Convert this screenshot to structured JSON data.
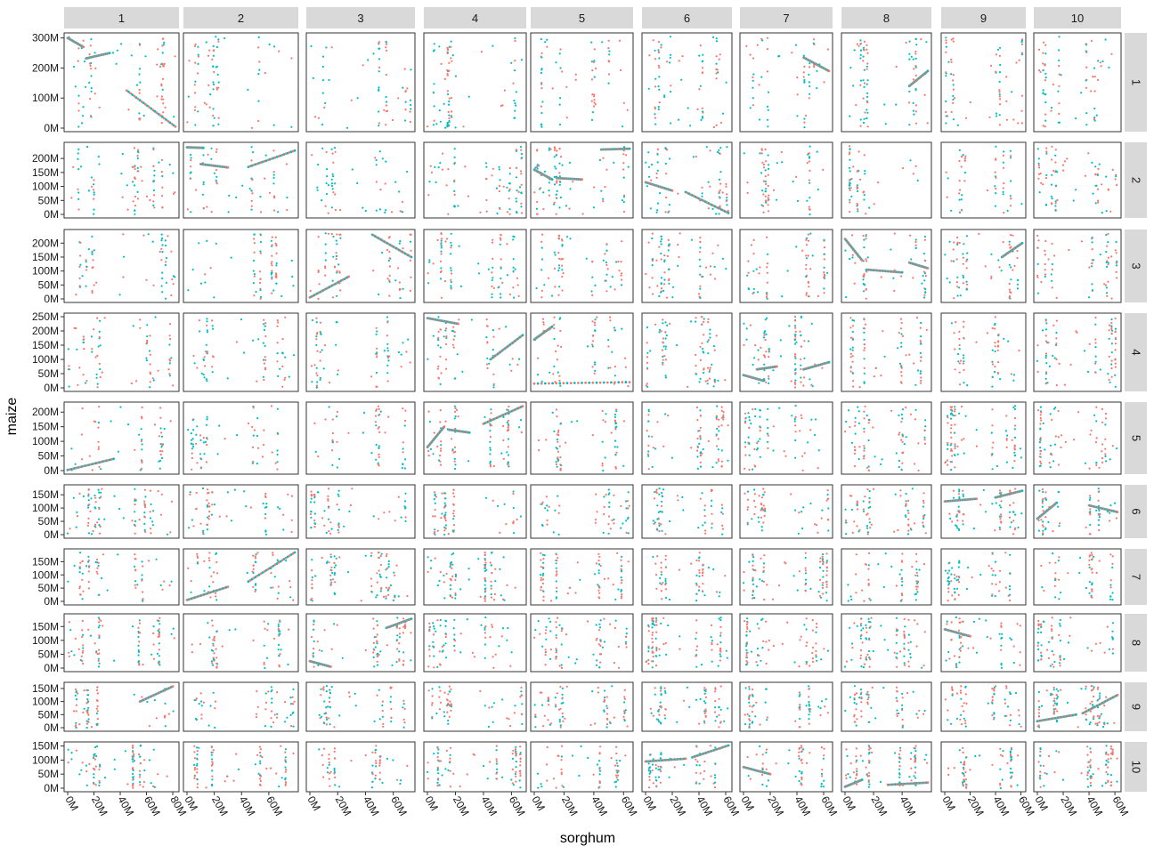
{
  "chart_data": {
    "type": "scatter",
    "title": "",
    "xlabel": "sorghum",
    "ylabel": "maize",
    "facet_cols": [
      "1",
      "2",
      "3",
      "4",
      "5",
      "6",
      "7",
      "8",
      "9",
      "10"
    ],
    "facet_rows": [
      "1",
      "2",
      "3",
      "4",
      "5",
      "6",
      "7",
      "8",
      "9",
      "10"
    ],
    "series_colors": [
      "#F8766D",
      "#00BFC4"
    ],
    "col_xmax_M": [
      82,
      79,
      73,
      68,
      64,
      62,
      64,
      58,
      61,
      62
    ],
    "row_ymax_M": [
      305,
      245,
      236,
      250,
      222,
      174,
      185,
      183,
      160,
      152
    ],
    "x_ticks": [
      {
        "value": 0,
        "label": "0M"
      },
      {
        "value": 20,
        "label": "20M"
      },
      {
        "value": 40,
        "label": "40M"
      },
      {
        "value": 60,
        "label": "60M"
      },
      {
        "value": 80,
        "label": "80M"
      }
    ],
    "y_ticks_by_row": [
      [
        {
          "value": 0,
          "label": "0M"
        },
        {
          "value": 100,
          "label": "100M"
        },
        {
          "value": 200,
          "label": "200M"
        },
        {
          "value": 300,
          "label": "300M"
        }
      ],
      [
        {
          "value": 0,
          "label": "0M"
        },
        {
          "value": 50,
          "label": "50M"
        },
        {
          "value": 100,
          "label": "100M"
        },
        {
          "value": 150,
          "label": "150M"
        },
        {
          "value": 200,
          "label": "200M"
        },
        {
          "value": 250,
          "label": "250M"
        }
      ],
      [
        {
          "value": 0,
          "label": "0M"
        },
        {
          "value": 50,
          "label": "50M"
        },
        {
          "value": 100,
          "label": "100M"
        },
        {
          "value": 150,
          "label": "150M"
        },
        {
          "value": 200,
          "label": "200M"
        }
      ],
      [
        {
          "value": 0,
          "label": "0M"
        },
        {
          "value": 50,
          "label": "50M"
        },
        {
          "value": 100,
          "label": "100M"
        },
        {
          "value": 150,
          "label": "150M"
        },
        {
          "value": 200,
          "label": "200M"
        },
        {
          "value": 250,
          "label": "250M"
        }
      ],
      [
        {
          "value": 0,
          "label": "0M"
        },
        {
          "value": 50,
          "label": "50M"
        },
        {
          "value": 100,
          "label": "100M"
        },
        {
          "value": 150,
          "label": "150M"
        },
        {
          "value": 200,
          "label": "200M"
        }
      ],
      [
        {
          "value": 0,
          "label": "0M"
        },
        {
          "value": 50,
          "label": "50M"
        },
        {
          "value": 100,
          "label": "100M"
        },
        {
          "value": 150,
          "label": "150M"
        }
      ],
      [
        {
          "value": 0,
          "label": "0M"
        },
        {
          "value": 50,
          "label": "50M"
        },
        {
          "value": 100,
          "label": "100M"
        },
        {
          "value": 150,
          "label": "150M"
        }
      ],
      [
        {
          "value": 0,
          "label": "0M"
        },
        {
          "value": 50,
          "label": "50M"
        },
        {
          "value": 100,
          "label": "100M"
        },
        {
          "value": 150,
          "label": "150M"
        }
      ],
      [
        {
          "value": 0,
          "label": "0M"
        },
        {
          "value": 50,
          "label": "50M"
        },
        {
          "value": 100,
          "label": "100M"
        },
        {
          "value": 150,
          "label": "150M"
        }
      ],
      [
        {
          "value": 0,
          "label": "0M"
        },
        {
          "value": 50,
          "label": "50M"
        },
        {
          "value": 100,
          "label": "100M"
        },
        {
          "value": 150,
          "label": "150M"
        }
      ]
    ],
    "syntenic_segments": [
      {
        "col": 1,
        "row": 1,
        "x0": 0,
        "y0": 300,
        "x1": 12,
        "y1": 270
      },
      {
        "col": 1,
        "row": 1,
        "x0": 14,
        "y0": 232,
        "x1": 32,
        "y1": 250
      },
      {
        "col": 1,
        "row": 1,
        "x0": 45,
        "y0": 125,
        "x1": 82,
        "y1": 5
      },
      {
        "col": 1,
        "row": 5,
        "x0": 0,
        "y0": 2,
        "x1": 35,
        "y1": 40
      },
      {
        "col": 1,
        "row": 9,
        "x0": 55,
        "y0": 100,
        "x1": 80,
        "y1": 158
      },
      {
        "col": 2,
        "row": 2,
        "x0": 0,
        "y0": 240,
        "x1": 12,
        "y1": 238
      },
      {
        "col": 2,
        "row": 2,
        "x0": 10,
        "y0": 180,
        "x1": 30,
        "y1": 168
      },
      {
        "col": 2,
        "row": 2,
        "x0": 45,
        "y0": 170,
        "x1": 79,
        "y1": 228
      },
      {
        "col": 2,
        "row": 7,
        "x0": 0,
        "y0": 5,
        "x1": 30,
        "y1": 55
      },
      {
        "col": 2,
        "row": 7,
        "x0": 45,
        "y0": 75,
        "x1": 79,
        "y1": 185
      },
      {
        "col": 3,
        "row": 3,
        "x0": 0,
        "y0": 5,
        "x1": 28,
        "y1": 80
      },
      {
        "col": 3,
        "row": 3,
        "x0": 45,
        "y0": 230,
        "x1": 73,
        "y1": 150
      },
      {
        "col": 3,
        "row": 8,
        "x0": 0,
        "y0": 25,
        "x1": 15,
        "y1": 5
      },
      {
        "col": 3,
        "row": 8,
        "x0": 55,
        "y0": 145,
        "x1": 73,
        "y1": 178
      },
      {
        "col": 4,
        "row": 4,
        "x0": 0,
        "y0": 245,
        "x1": 22,
        "y1": 225
      },
      {
        "col": 4,
        "row": 4,
        "x0": 45,
        "y0": 100,
        "x1": 68,
        "y1": 185
      },
      {
        "col": 4,
        "row": 5,
        "x0": 0,
        "y0": 80,
        "x1": 12,
        "y1": 150
      },
      {
        "col": 4,
        "row": 5,
        "x0": 15,
        "y0": 140,
        "x1": 30,
        "y1": 130
      },
      {
        "col": 4,
        "row": 5,
        "x0": 40,
        "y0": 160,
        "x1": 68,
        "y1": 220
      },
      {
        "col": 5,
        "row": 2,
        "x0": 0,
        "y0": 160,
        "x1": 12,
        "y1": 125
      },
      {
        "col": 5,
        "row": 2,
        "x0": 15,
        "y0": 130,
        "x1": 32,
        "y1": 125
      },
      {
        "col": 5,
        "row": 2,
        "x0": 45,
        "y0": 232,
        "x1": 64,
        "y1": 235
      },
      {
        "col": 5,
        "row": 4,
        "x0": 0,
        "y0": 15,
        "x1": 64,
        "y1": 20
      },
      {
        "col": 5,
        "row": 4,
        "x0": 0,
        "y0": 170,
        "x1": 12,
        "y1": 215
      },
      {
        "col": 6,
        "row": 2,
        "x0": 0,
        "y0": 115,
        "x1": 20,
        "y1": 85
      },
      {
        "col": 6,
        "row": 2,
        "x0": 30,
        "y0": 80,
        "x1": 62,
        "y1": 5
      },
      {
        "col": 6,
        "row": 10,
        "x0": 0,
        "y0": 95,
        "x1": 30,
        "y1": 105
      },
      {
        "col": 6,
        "row": 10,
        "x0": 35,
        "y0": 110,
        "x1": 62,
        "y1": 152
      },
      {
        "col": 7,
        "row": 1,
        "x0": 45,
        "y0": 235,
        "x1": 64,
        "y1": 190
      },
      {
        "col": 7,
        "row": 4,
        "x0": 0,
        "y0": 45,
        "x1": 15,
        "y1": 25
      },
      {
        "col": 7,
        "row": 4,
        "x0": 10,
        "y0": 65,
        "x1": 25,
        "y1": 75
      },
      {
        "col": 7,
        "row": 4,
        "x0": 45,
        "y0": 65,
        "x1": 64,
        "y1": 90
      },
      {
        "col": 7,
        "row": 10,
        "x0": 0,
        "y0": 75,
        "x1": 20,
        "y1": 50
      },
      {
        "col": 8,
        "row": 1,
        "x0": 45,
        "y0": 140,
        "x1": 58,
        "y1": 190
      },
      {
        "col": 8,
        "row": 3,
        "x0": 0,
        "y0": 215,
        "x1": 12,
        "y1": 138
      },
      {
        "col": 8,
        "row": 3,
        "x0": 15,
        "y0": 105,
        "x1": 40,
        "y1": 95
      },
      {
        "col": 8,
        "row": 3,
        "x0": 45,
        "y0": 130,
        "x1": 58,
        "y1": 110
      },
      {
        "col": 8,
        "row": 10,
        "x0": 0,
        "y0": 5,
        "x1": 12,
        "y1": 30
      },
      {
        "col": 8,
        "row": 10,
        "x0": 30,
        "y0": 12,
        "x1": 58,
        "y1": 20
      },
      {
        "col": 9,
        "row": 3,
        "x0": 45,
        "y0": 150,
        "x1": 61,
        "y1": 200
      },
      {
        "col": 9,
        "row": 6,
        "x0": 0,
        "y0": 125,
        "x1": 25,
        "y1": 135
      },
      {
        "col": 9,
        "row": 6,
        "x0": 40,
        "y0": 140,
        "x1": 61,
        "y1": 165
      },
      {
        "col": 9,
        "row": 8,
        "x0": 0,
        "y0": 140,
        "x1": 20,
        "y1": 115
      },
      {
        "col": 10,
        "row": 6,
        "x0": 0,
        "y0": 60,
        "x1": 15,
        "y1": 120
      },
      {
        "col": 10,
        "row": 6,
        "x0": 40,
        "y0": 110,
        "x1": 62,
        "y1": 85
      },
      {
        "col": 10,
        "row": 9,
        "x0": 0,
        "y0": 25,
        "x1": 30,
        "y1": 50
      },
      {
        "col": 10,
        "row": 9,
        "x0": 35,
        "y0": 55,
        "x1": 62,
        "y1": 125
      }
    ]
  }
}
